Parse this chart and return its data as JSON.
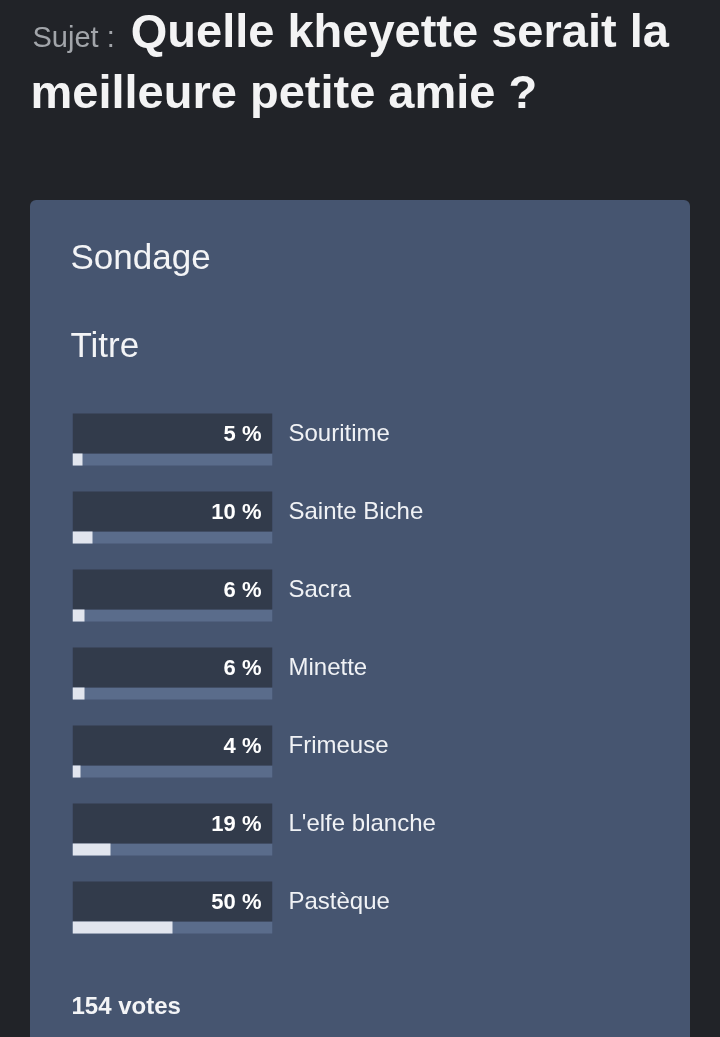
{
  "chart_data": {
    "type": "bar",
    "orientation": "horizontal",
    "title": "Quelle kheyette serait la meilleure petite amie ?",
    "annotations": [
      "Sujet :",
      "Sondage",
      "Titre",
      "154 votes"
    ],
    "categories": [
      "Souritime",
      "Sainte Biche",
      "Sacra",
      "Minette",
      "Frimeuse",
      "L'elfe blanche",
      "Pastèque"
    ],
    "values": [
      5,
      10,
      6,
      6,
      4,
      19,
      50
    ],
    "value_labels": [
      "5 %",
      "10 %",
      "6 %",
      "6 %",
      "4 %",
      "19 %",
      "50 %"
    ],
    "color": "#e1e5ee",
    "xlim": [
      0,
      100
    ],
    "tick_labels": false,
    "grid": "y"
  }
}
